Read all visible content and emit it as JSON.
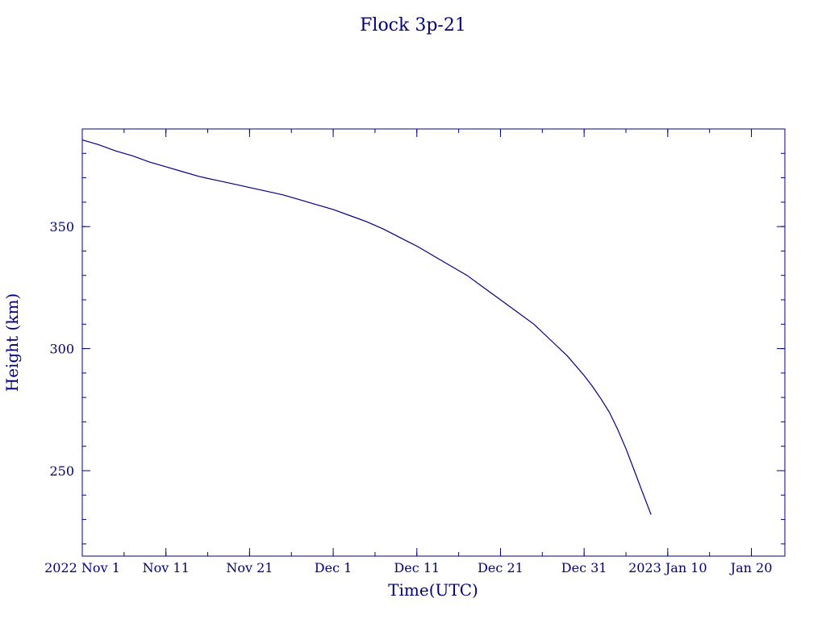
{
  "chart_data": {
    "type": "line",
    "title": "Flock 3p-21",
    "xlabel": "Time(UTC)",
    "ylabel": "Height (km)",
    "xlim": [
      "2022-11-01",
      "2023-01-24"
    ],
    "ylim": [
      215,
      390
    ],
    "x_ticks": [
      "2022-11-01",
      "2022-11-11",
      "2022-11-21",
      "2022-12-01",
      "2022-12-11",
      "2022-12-21",
      "2022-12-31",
      "2023-01-10",
      "2023-01-20"
    ],
    "x_tick_labels": [
      "2022 Nov  1",
      "Nov 11",
      "Nov 21",
      "Dec  1",
      "Dec 11",
      "Dec 21",
      "Dec 31",
      "2023 Jan 10",
      "Jan 20"
    ],
    "y_ticks": [
      250,
      300,
      350
    ],
    "y_tick_labels": [
      "250",
      "300",
      "350"
    ],
    "grid": false,
    "color": "#00007f",
    "series": [
      {
        "x": [
          "2022-11-01",
          "2022-11-03",
          "2022-11-05",
          "2022-11-07",
          "2022-11-09",
          "2022-11-11",
          "2022-11-13",
          "2022-11-15",
          "2022-11-17",
          "2022-11-19",
          "2022-11-21",
          "2022-11-23",
          "2022-11-25",
          "2022-11-27",
          "2022-11-29",
          "2022-12-01",
          "2022-12-03",
          "2022-12-05",
          "2022-12-07",
          "2022-12-09",
          "2022-12-11",
          "2022-12-13",
          "2022-12-15",
          "2022-12-17",
          "2022-12-19",
          "2022-12-21",
          "2022-12-23",
          "2022-12-25",
          "2022-12-27",
          "2022-12-29",
          "2022-12-31",
          "2023-01-01",
          "2023-01-02",
          "2023-01-03",
          "2023-01-04",
          "2023-01-05",
          "2023-01-06",
          "2023-01-07",
          "2023-01-08"
        ],
        "y": [
          385.5,
          383.5,
          381.0,
          379.0,
          376.5,
          374.5,
          372.5,
          370.5,
          369.0,
          367.5,
          366.0,
          364.5,
          363.0,
          361.0,
          359.0,
          357.0,
          354.5,
          352.0,
          349.0,
          345.5,
          342.0,
          338.0,
          334.0,
          330.0,
          325.0,
          320.0,
          315.0,
          310.0,
          303.5,
          297.0,
          289.0,
          284.5,
          279.5,
          274.0,
          267.0,
          259.0,
          250.0,
          241.0,
          232.0
        ]
      }
    ]
  }
}
